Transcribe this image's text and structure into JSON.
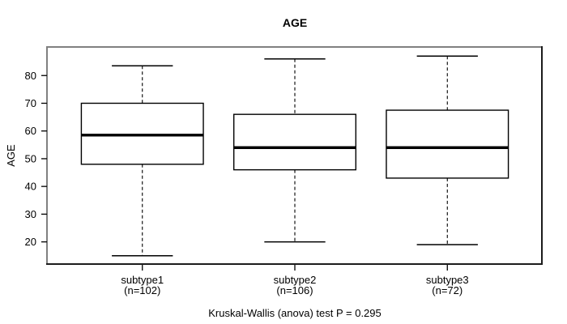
{
  "chart_data": {
    "type": "boxplot",
    "title": "AGE",
    "ylabel": "AGE",
    "xlabel": "",
    "caption": "Kruskal-Wallis (anova) test P = 0.295",
    "yticks": [
      20,
      30,
      40,
      50,
      60,
      70,
      80
    ],
    "ylim": [
      12,
      90.3
    ],
    "grid": false,
    "legend": "none",
    "groups": [
      {
        "label": "subtype1",
        "sublabel": "(n=102)",
        "n": 102,
        "lower_whisker": 15,
        "q1": 48,
        "median": 58.5,
        "q3": 70,
        "upper_whisker": 83.5
      },
      {
        "label": "subtype2",
        "sublabel": "(n=106)",
        "n": 106,
        "lower_whisker": 20,
        "q1": 46,
        "median": 54,
        "q3": 66,
        "upper_whisker": 86
      },
      {
        "label": "subtype3",
        "sublabel": "(n=72)",
        "n": 72,
        "lower_whisker": 19,
        "q1": 43,
        "median": 54,
        "q3": 67.5,
        "upper_whisker": 87
      }
    ]
  },
  "colors": {
    "background": "#ffffff",
    "box_fill": "#ffffff",
    "box_stroke": "#000000",
    "median": "#000000",
    "whisker": "#000000",
    "tick": "#000000",
    "text": "#000000",
    "frame_light": "#808080",
    "frame_dark": "#1c1c1c"
  }
}
